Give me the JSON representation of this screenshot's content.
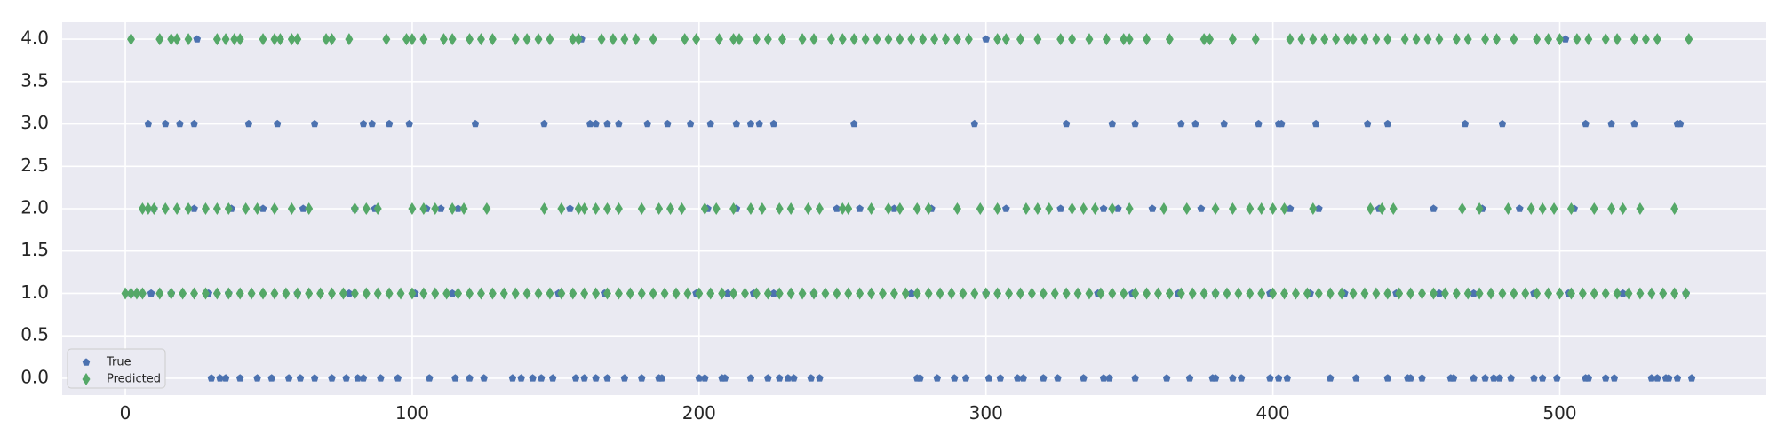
{
  "chart_data": {
    "type": "scatter",
    "title": "",
    "xlabel": "",
    "ylabel": "",
    "xlim": [
      -22,
      572
    ],
    "ylim": [
      -0.2,
      4.2
    ],
    "xticks": [
      0,
      100,
      200,
      300,
      400,
      500
    ],
    "yticks": [
      0.0,
      0.5,
      1.0,
      1.5,
      2.0,
      2.5,
      3.0,
      3.5,
      4.0
    ],
    "ytick_labels": [
      "0.0",
      "0.5",
      "1.0",
      "1.5",
      "2.0",
      "2.5",
      "3.0",
      "3.5",
      "4.0"
    ],
    "grid": true,
    "legend_position": "lower-left",
    "background": "#eaeaf2",
    "series": [
      {
        "name": "True",
        "marker": "pentagon",
        "color": "#4c72b0",
        "points": {
          "4": [
            25,
            159,
            300,
            502
          ],
          "3": [
            8,
            14,
            19,
            24,
            43,
            53,
            66,
            83,
            86,
            92,
            99,
            122,
            146,
            162,
            164,
            168,
            172,
            182,
            189,
            197,
            204,
            213,
            218,
            221,
            226,
            254,
            296,
            328,
            344,
            352,
            368,
            373,
            383,
            395,
            402,
            403,
            415,
            433,
            440,
            467,
            480,
            509,
            518,
            526,
            541,
            542
          ],
          "2": [
            10,
            24,
            37,
            48,
            62,
            80,
            87,
            105,
            110,
            116,
            155,
            203,
            213,
            248,
            256,
            268,
            281,
            307,
            326,
            341,
            346,
            358,
            375,
            406,
            416,
            437,
            456,
            473,
            486,
            505
          ],
          "1": [
            2,
            9,
            16,
            29,
            36,
            60,
            78,
            101,
            114,
            151,
            167,
            199,
            210,
            219,
            226,
            240,
            274,
            300,
            339,
            351,
            367,
            380,
            399,
            413,
            425,
            443,
            458,
            470,
            491,
            503,
            522,
            544
          ],
          "0": [
            11,
            30,
            33,
            35,
            40,
            46,
            51,
            57,
            61,
            66,
            72,
            77,
            81,
            83,
            89,
            95,
            106,
            115,
            120,
            125,
            135,
            138,
            142,
            145,
            149,
            157,
            160,
            164,
            168,
            174,
            180,
            186,
            187,
            200,
            202,
            208,
            209,
            218,
            224,
            228,
            231,
            233,
            239,
            242,
            276,
            277,
            283,
            289,
            293,
            301,
            305,
            311,
            313,
            320,
            325,
            334,
            341,
            343,
            352,
            363,
            371,
            379,
            380,
            386,
            389,
            399,
            402,
            405,
            420,
            429,
            440,
            447,
            448,
            452,
            462,
            463,
            470,
            474,
            477,
            479,
            483,
            491,
            494,
            499,
            509,
            510,
            516,
            519,
            532,
            534,
            537,
            538,
            541,
            546
          ]
        }
      },
      {
        "name": "Predicted",
        "marker": "diamond",
        "color": "#55a868",
        "points": {
          "4": [
            2,
            12,
            16,
            18,
            22,
            32,
            35,
            38,
            40,
            48,
            52,
            54,
            58,
            60,
            70,
            72,
            78,
            91,
            98,
            100,
            104,
            111,
            114,
            120,
            124,
            128,
            136,
            140,
            144,
            148,
            156,
            158,
            166,
            170,
            174,
            178,
            184,
            195,
            199,
            207,
            212,
            214,
            220,
            224,
            229,
            236,
            240,
            246,
            250,
            254,
            258,
            262,
            266,
            270,
            274,
            278,
            282,
            286,
            290,
            294,
            304,
            307,
            312,
            318,
            326,
            330,
            336,
            342,
            348,
            350,
            356,
            364,
            376,
            378,
            386,
            394,
            406,
            410,
            414,
            418,
            422,
            426,
            428,
            432,
            436,
            440,
            446,
            450,
            454,
            458,
            464,
            468,
            474,
            478,
            484,
            492,
            496,
            500,
            506,
            510,
            516,
            520,
            526,
            530,
            534,
            545
          ],
          "2": [
            6,
            8,
            10,
            14,
            18,
            22,
            28,
            32,
            36,
            42,
            46,
            52,
            58,
            64,
            80,
            84,
            88,
            100,
            104,
            108,
            114,
            118,
            126,
            146,
            152,
            158,
            160,
            164,
            168,
            172,
            180,
            186,
            190,
            194,
            202,
            206,
            212,
            218,
            222,
            228,
            232,
            238,
            242,
            250,
            252,
            260,
            266,
            270,
            276,
            280,
            290,
            298,
            304,
            314,
            318,
            322,
            330,
            334,
            338,
            344,
            350,
            362,
            370,
            380,
            386,
            392,
            396,
            400,
            404,
            414,
            434,
            438,
            442,
            466,
            472,
            482,
            490,
            494,
            498,
            504,
            512,
            518,
            522,
            528,
            540
          ],
          "1": [
            0,
            2,
            4,
            6,
            12,
            16,
            20,
            24,
            28,
            32,
            36,
            40,
            44,
            48,
            52,
            56,
            60,
            64,
            68,
            72,
            76,
            80,
            84,
            88,
            92,
            96,
            100,
            104,
            108,
            112,
            116,
            120,
            124,
            128,
            132,
            136,
            140,
            144,
            148,
            152,
            156,
            160,
            164,
            168,
            172,
            176,
            180,
            184,
            188,
            192,
            196,
            200,
            204,
            208,
            212,
            216,
            220,
            224,
            228,
            232,
            236,
            240,
            244,
            248,
            252,
            256,
            260,
            264,
            268,
            272,
            276,
            280,
            284,
            288,
            292,
            296,
            300,
            304,
            308,
            312,
            316,
            320,
            324,
            328,
            332,
            336,
            340,
            344,
            348,
            352,
            356,
            360,
            364,
            368,
            372,
            376,
            380,
            384,
            388,
            392,
            396,
            400,
            404,
            408,
            412,
            416,
            420,
            424,
            428,
            432,
            436,
            440,
            444,
            448,
            452,
            456,
            460,
            464,
            468,
            472,
            476,
            480,
            484,
            488,
            492,
            496,
            500,
            504,
            508,
            512,
            516,
            520,
            524,
            528,
            532,
            536,
            540,
            544
          ]
        }
      }
    ],
    "legend": [
      "True",
      "Predicted"
    ]
  }
}
